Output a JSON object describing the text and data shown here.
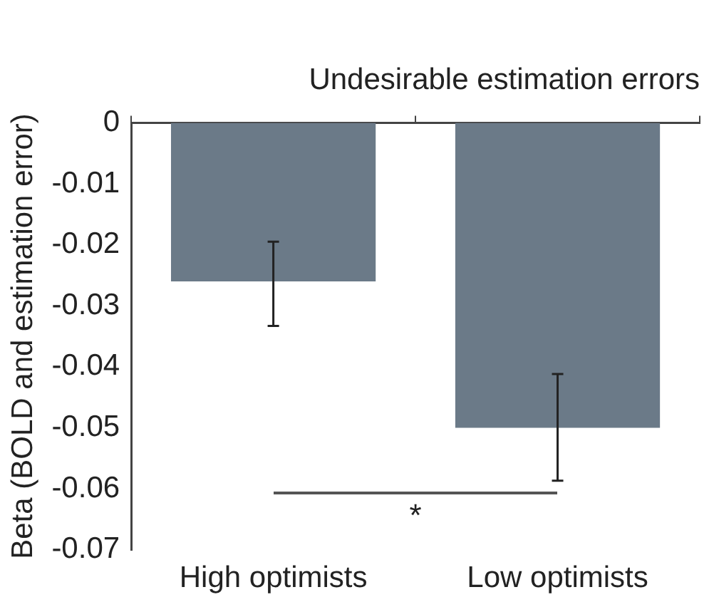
{
  "chart_data": {
    "type": "bar",
    "title": "Undesirable estimation errors",
    "ylabel": "Beta (BOLD and estimation error)",
    "categories": [
      "High optimists",
      "Low optimists"
    ],
    "values": [
      -0.026,
      -0.05
    ],
    "color": "#6b7a88",
    "errors": [
      [
        -0.0333,
        -0.0195
      ],
      [
        -0.0587,
        -0.0412
      ]
    ],
    "ylim": [
      -0.07,
      0
    ],
    "yticks": [
      -0.07,
      -0.06,
      -0.05,
      -0.04,
      -0.03,
      -0.02,
      -0.01,
      0
    ],
    "annotations": [
      "*"
    ],
    "grid": false,
    "legend": false
  }
}
